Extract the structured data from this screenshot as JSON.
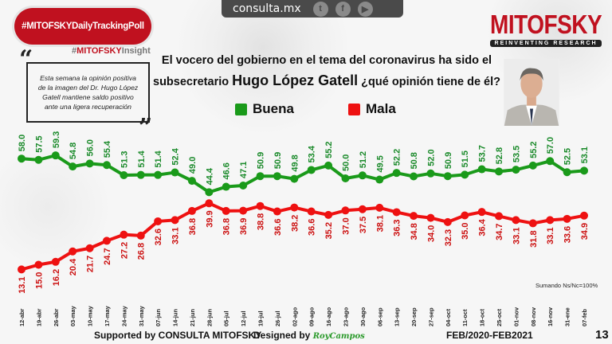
{
  "topbar": {
    "site": "consulta.mx",
    "icons": [
      "twitter-icon",
      "facebook-icon",
      "youtube-icon"
    ]
  },
  "badge": "#MITOFSKYDailyTrackingPoll",
  "insight": {
    "prefix": "#",
    "brand": "MITOFSKY",
    "suffix": "Insight"
  },
  "quote": "Esta semana la opinión positiva de la imagen del  Dr. Hugo López Gatell mantiene saldo positivo ante una ligera recuperación",
  "question": {
    "line1": "El vocero del gobierno en el tema del coronavirus ha sido el",
    "line2_pre": "subsecretario ",
    "line2_name": "Hugo López Gatell",
    "line2_post": " ¿qué opinión tiene de él?"
  },
  "logo": {
    "name": "MITOFSKY",
    "tagline": "REINVENTING RESEARCH"
  },
  "note": "Sumando Ns/Nc=100%",
  "footer": {
    "supported": "Supported by  CONSULTA  MITOFSKY",
    "designed": "Designed by",
    "designer": "RoyCampos",
    "period": "FEB/2020-FEB2021",
    "page": "13"
  },
  "colors": {
    "buena": "#1a9a1a",
    "mala": "#ee1111",
    "brand": "#c0111f"
  },
  "chart_data": {
    "type": "line",
    "title": "El vocero del gobierno en el tema del coronavirus ha sido el subsecretario Hugo López Gatell ¿qué opinión tiene de él?",
    "categories": [
      "12-abr",
      "19-abr",
      "26-abr",
      "03-may",
      "10-may",
      "17-may",
      "24-may",
      "31-may",
      "07-jun",
      "14-jun",
      "21-jun",
      "28-jun",
      "05-jul",
      "12-jul",
      "19-jul",
      "26-jul",
      "02-ago",
      "09-ago",
      "16-ago",
      "23-ago",
      "30-ago",
      "06-sep",
      "13-sep",
      "20-sep",
      "27-sep",
      "04-oct",
      "11-oct",
      "18-oct",
      "25-oct",
      "01-nov",
      "08-nov",
      "16-nov",
      "31-ene",
      "07-feb"
    ],
    "series": [
      {
        "name": "Buena",
        "values": [
          58.0,
          57.5,
          59.3,
          54.8,
          56.0,
          55.4,
          51.3,
          51.4,
          51.4,
          52.4,
          49.0,
          44.4,
          46.6,
          47.1,
          50.9,
          50.9,
          49.8,
          53.4,
          55.2,
          50.0,
          51.2,
          49.5,
          52.2,
          50.8,
          52.0,
          50.9,
          51.5,
          53.7,
          52.8,
          53.5,
          55.2,
          57.0,
          52.5,
          53.1
        ]
      },
      {
        "name": "Mala",
        "values": [
          13.1,
          15.0,
          16.2,
          20.4,
          21.7,
          24.7,
          27.2,
          26.8,
          32.6,
          33.1,
          36.8,
          39.9,
          36.8,
          36.9,
          38.8,
          36.6,
          38.2,
          36.6,
          35.2,
          37.0,
          37.5,
          38.1,
          36.3,
          34.8,
          34.0,
          32.3,
          35.0,
          36.4,
          34.7,
          33.1,
          31.8,
          33.1,
          33.6,
          34.9
        ]
      }
    ],
    "legend": "top-center",
    "grid": false
  }
}
